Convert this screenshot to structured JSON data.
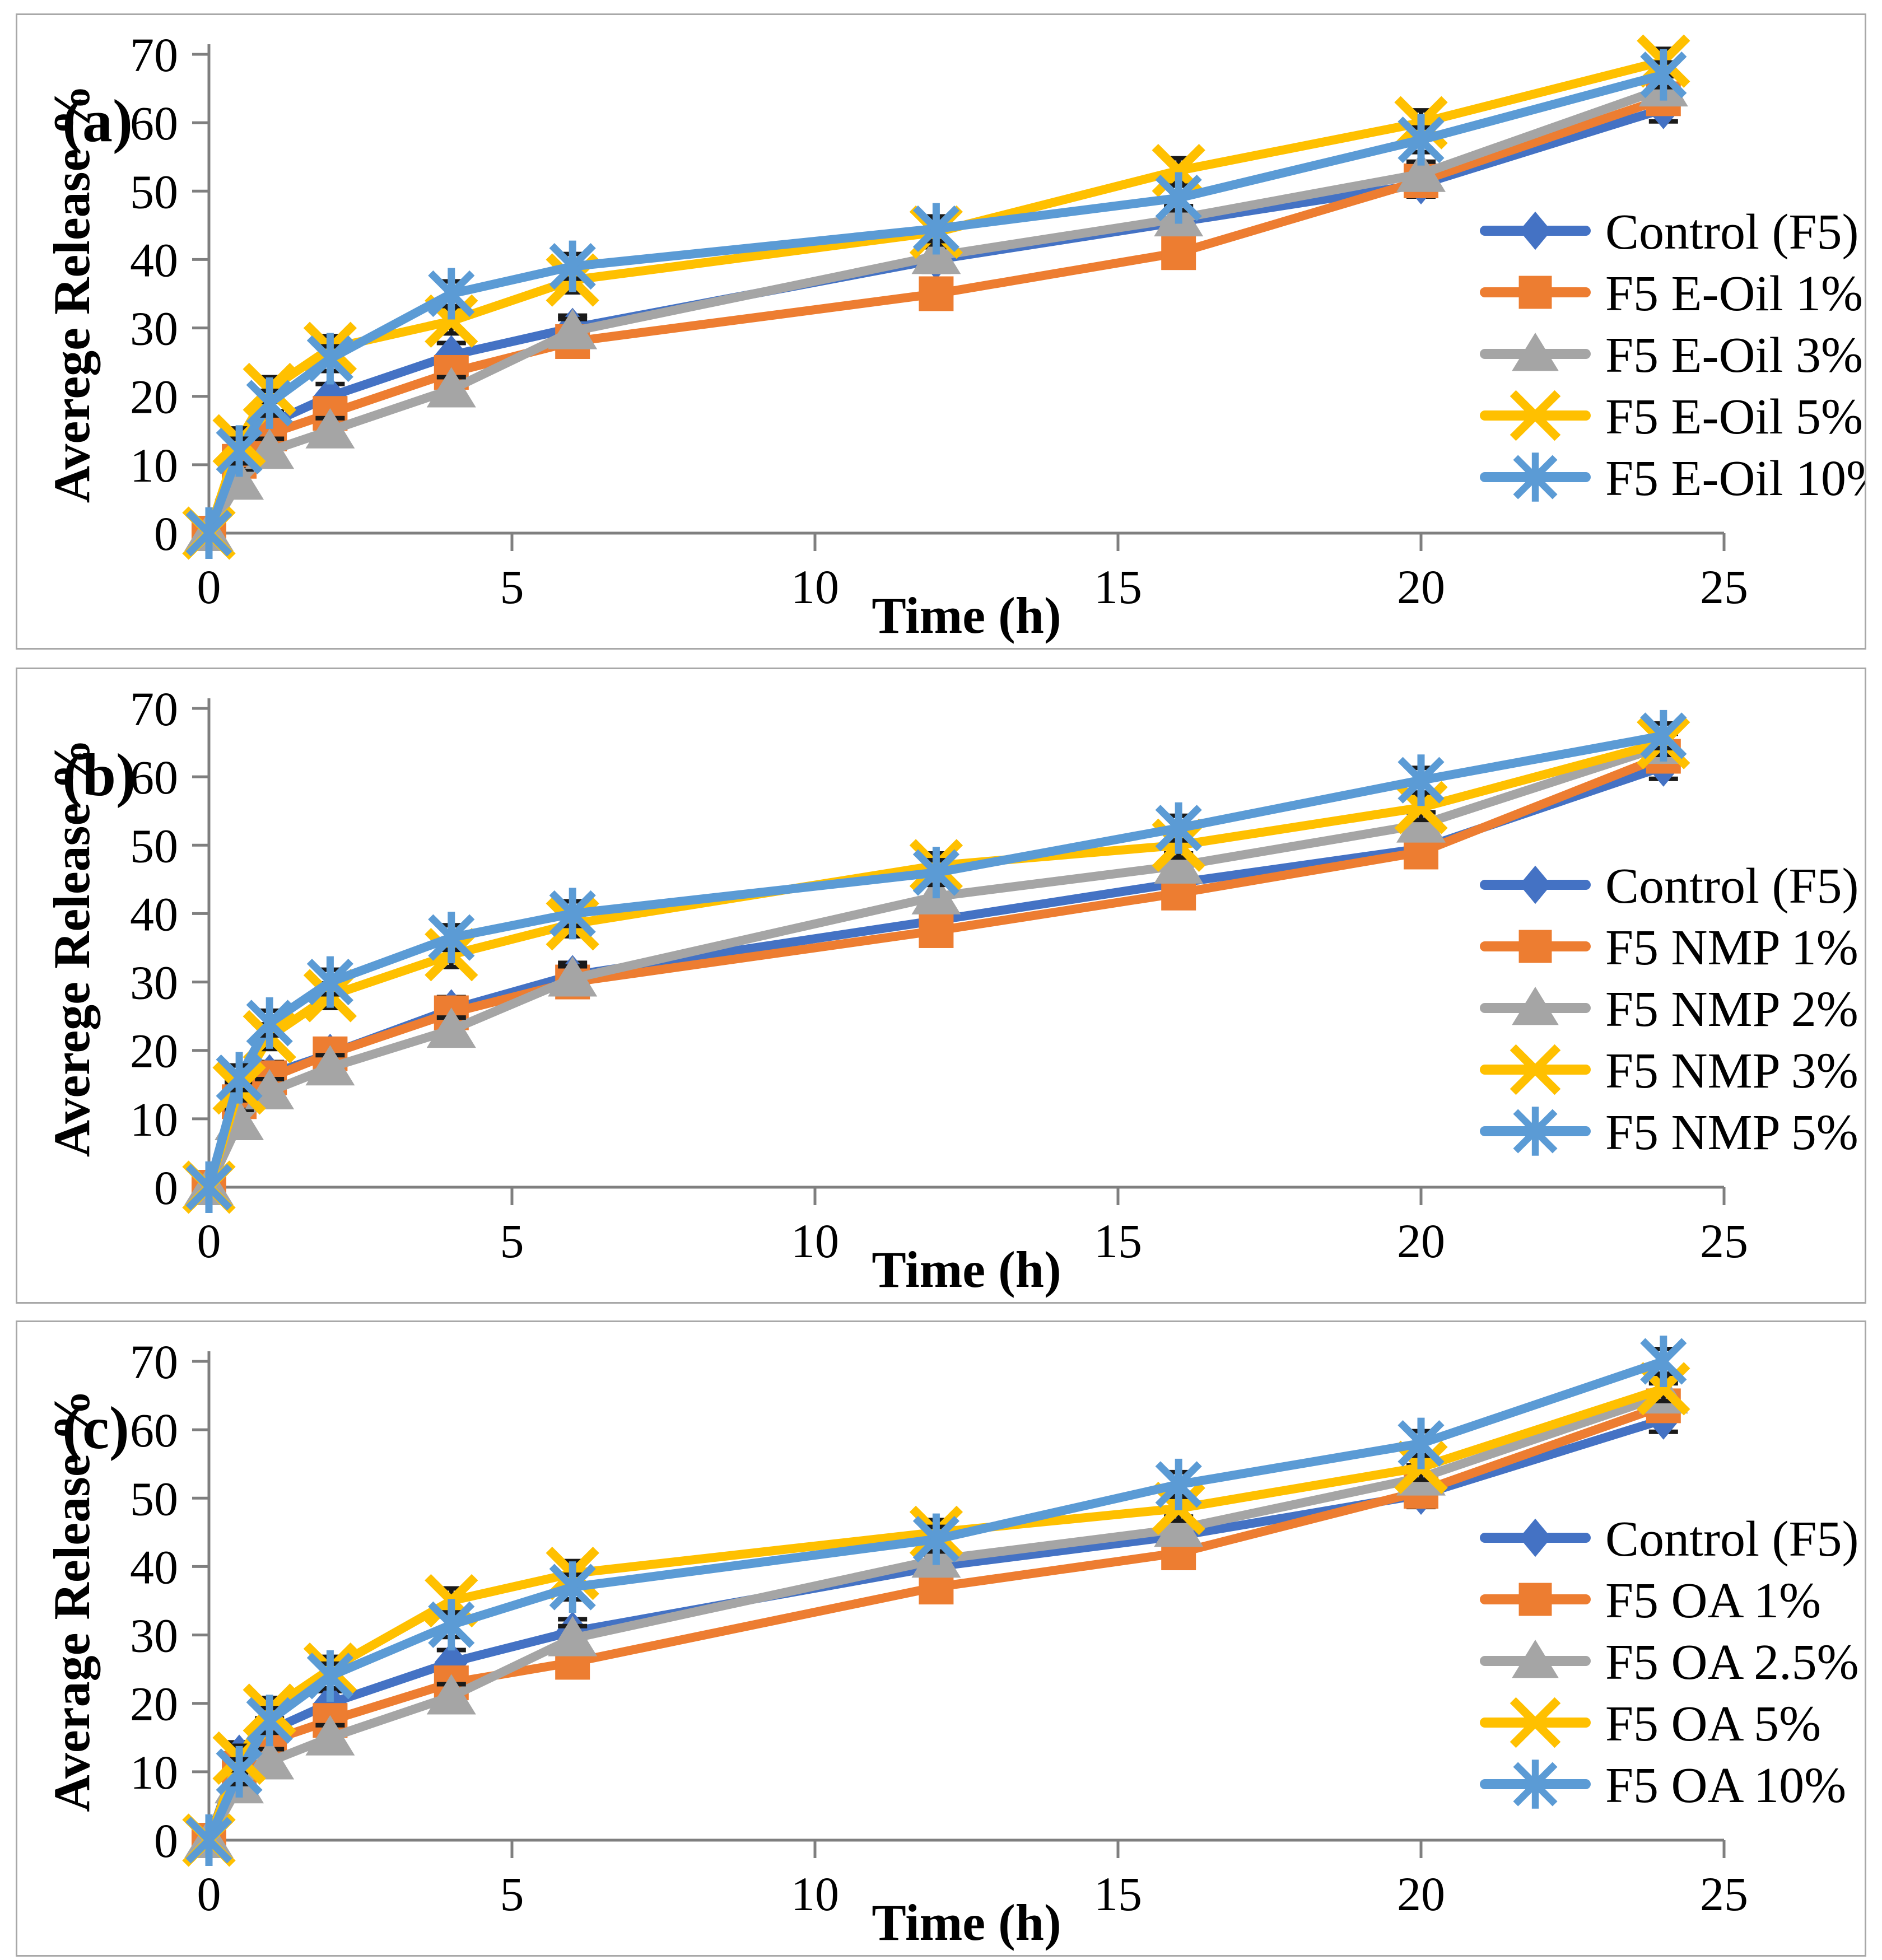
{
  "figure": {
    "panels": [
      {
        "label": "(a)"
      },
      {
        "label": "(b)"
      },
      {
        "label": "(c)"
      }
    ]
  },
  "chart_data": [
    {
      "panel_label": "(a)",
      "type": "line",
      "title": "",
      "xlabel": "Time (h)",
      "ylabel": "Averege Release %",
      "xlim": [
        0,
        25
      ],
      "ylim": [
        0,
        70
      ],
      "xticks": [
        0,
        5,
        10,
        15,
        20,
        25
      ],
      "yticks": [
        0,
        10,
        20,
        30,
        40,
        50,
        60,
        70
      ],
      "grid": false,
      "legend_position": "inside-right",
      "error_bar": 1.8,
      "x": [
        0,
        0.5,
        1,
        2,
        4,
        6,
        12,
        16,
        20,
        24
      ],
      "series": [
        {
          "name": "Control (F5)",
          "color": "#4472C4",
          "marker": "diamond",
          "values": [
            0,
            12,
            16,
            20,
            26,
            30,
            40,
            45.5,
            51,
            62
          ]
        },
        {
          "name": "F5 E-Oil 1%",
          "color": "#ED7D31",
          "marker": "square",
          "values": [
            0,
            10.5,
            14.5,
            17.5,
            23.5,
            28,
            35,
            41,
            51.5,
            63.5
          ]
        },
        {
          "name": "F5 E-Oil 3%",
          "color": "#A5A5A5",
          "marker": "triangle",
          "values": [
            0,
            7.5,
            12,
            15,
            21,
            29.5,
            40.5,
            46,
            52.5,
            65
          ]
        },
        {
          "name": "F5 E-Oil 5%",
          "color": "#FFC000",
          "marker": "x",
          "values": [
            0,
            13.5,
            21,
            27,
            31,
            37,
            44,
            53,
            60,
            69
          ]
        },
        {
          "name": "F5 E-Oil 10%",
          "color": "#5B9BD5",
          "marker": "star",
          "values": [
            0,
            12,
            19,
            25.5,
            35,
            39,
            44.5,
            49,
            57.5,
            67
          ]
        }
      ]
    },
    {
      "panel_label": "(b)",
      "type": "line",
      "title": "",
      "xlabel": "Time (h)",
      "ylabel": "Averege Release %",
      "xlim": [
        0,
        25
      ],
      "ylim": [
        0,
        70
      ],
      "xticks": [
        0,
        5,
        10,
        15,
        20,
        25
      ],
      "yticks": [
        0,
        10,
        20,
        30,
        40,
        50,
        60,
        70
      ],
      "grid": false,
      "legend_position": "inside-right",
      "error_bar": 1.8,
      "x": [
        0,
        0.5,
        1,
        2,
        4,
        6,
        12,
        16,
        20,
        24
      ],
      "series": [
        {
          "name": "Control (F5)",
          "color": "#4472C4",
          "marker": "diamond",
          "values": [
            0,
            13.5,
            16.5,
            19.5,
            26,
            31,
            39,
            44.5,
            49.5,
            61.5
          ]
        },
        {
          "name": "F5 NMP 1%",
          "color": "#ED7D31",
          "marker": "square",
          "values": [
            0,
            12.5,
            16,
            19.5,
            25.5,
            30,
            37.5,
            43,
            49,
            63
          ]
        },
        {
          "name": "F5 NMP 2%",
          "color": "#A5A5A5",
          "marker": "triangle",
          "values": [
            0,
            9.5,
            14,
            17.5,
            23,
            30.5,
            42.5,
            47,
            53,
            64.5
          ]
        },
        {
          "name": "F5 NMP 3%",
          "color": "#FFC000",
          "marker": "x",
          "values": [
            0,
            14.5,
            22,
            28,
            34,
            38.5,
            47,
            50,
            55.5,
            65
          ]
        },
        {
          "name": "F5 NMP 5%",
          "color": "#5B9BD5",
          "marker": "star",
          "values": [
            0,
            16,
            24,
            30,
            36.5,
            40,
            46,
            52.5,
            59.5,
            66
          ]
        }
      ]
    },
    {
      "panel_label": "(c)",
      "type": "line",
      "title": "",
      "xlabel": "Time (h)",
      "ylabel": "Average Release %",
      "xlim": [
        0,
        25
      ],
      "ylim": [
        0,
        70
      ],
      "xticks": [
        0,
        5,
        10,
        15,
        20,
        25
      ],
      "yticks": [
        0,
        10,
        20,
        30,
        40,
        50,
        60,
        70
      ],
      "grid": false,
      "legend_position": "inside-right",
      "error_bar": 1.8,
      "x": [
        0,
        0.5,
        1,
        2,
        4,
        6,
        12,
        16,
        20,
        24
      ],
      "series": [
        {
          "name": "Control (F5)",
          "color": "#4472C4",
          "marker": "diamond",
          "values": [
            0,
            12.5,
            16,
            20,
            26,
            30.5,
            40,
            44.5,
            50.5,
            61.5
          ]
        },
        {
          "name": "F5 OA 1%",
          "color": "#ED7D31",
          "marker": "square",
          "values": [
            0,
            10.5,
            14.5,
            17.5,
            23,
            26,
            37,
            42,
            51,
            63.5
          ]
        },
        {
          "name": "F5 OA 2.5%",
          "color": "#A5A5A5",
          "marker": "triangle",
          "values": [
            0,
            8,
            11.5,
            15,
            21,
            29.5,
            41,
            45.5,
            53,
            65
          ]
        },
        {
          "name": "F5 OA 5%",
          "color": "#FFC000",
          "marker": "x",
          "values": [
            0,
            12,
            19,
            25,
            35,
            39,
            45,
            48.5,
            54.5,
            66
          ]
        },
        {
          "name": "F5 OA 10%",
          "color": "#5B9BD5",
          "marker": "star",
          "values": [
            0,
            10,
            17.5,
            24,
            31.5,
            37,
            44,
            52,
            58,
            70
          ]
        }
      ]
    }
  ]
}
